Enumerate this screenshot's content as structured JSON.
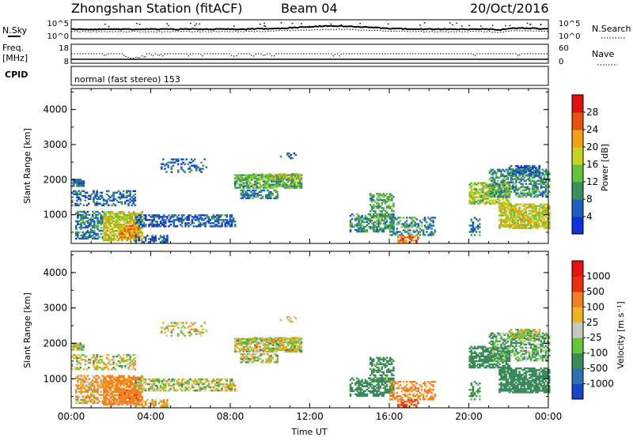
{
  "header": {
    "station": "Zhongshan Station (fitACF)",
    "beam": "Beam 04",
    "date": "20/Oct/2016"
  },
  "strip_sky": {
    "left_label": "N.Sky",
    "right_label": "N.Search",
    "left_ticks": [
      "10^5",
      "10^0"
    ],
    "right_ticks": [
      "10^5",
      "10^0"
    ]
  },
  "strip_freq": {
    "left_label_1": "Freq.",
    "left_label_2": "[MHz]",
    "right_label": "Nave",
    "left_ticks": [
      "18",
      "8"
    ],
    "right_ticks": [
      "60",
      "0"
    ]
  },
  "cpid": {
    "label": "CPID",
    "mode": "normal (fast stereo) 153"
  },
  "chart_data": [
    {
      "type": "heatmap",
      "panel": "power",
      "ylabel": "Slant Range [km]",
      "xlabel": "",
      "ylim": [
        180,
        4600
      ],
      "yticks": [
        "1000",
        "2000",
        "3000",
        "4000"
      ],
      "xticks": [
        "00:00",
        "04:00",
        "08:00",
        "12:00",
        "16:00",
        "20:00",
        "00:00"
      ],
      "colorbar": {
        "label": "Power [dB]",
        "ticks": [
          "4",
          "8",
          "12",
          "16",
          "20",
          "24",
          "28"
        ],
        "colors": [
          "#1030e0",
          "#1c5fc0",
          "#3b8f5c",
          "#62c238",
          "#c8d020",
          "#f0a010",
          "#e85010",
          "#e01010"
        ]
      },
      "regions_description": "scatter echoes 00-03 UT at 300-1900 km, 08-11 UT at 1800-2100 km, 15-18 UT at 500-1600 km, 20-24 UT at 500-2400 km"
    },
    {
      "type": "heatmap",
      "panel": "velocity",
      "ylabel": "Slant Range [km]",
      "xlabel": "Time UT",
      "ylim": [
        180,
        4600
      ],
      "yticks": [
        "1000",
        "2000",
        "3000",
        "4000"
      ],
      "xticks": [
        "00:00",
        "04:00",
        "08:00",
        "12:00",
        "16:00",
        "20:00",
        "00:00"
      ],
      "colorbar": {
        "label": "Velocity [m s⁻¹]",
        "ticks": [
          "1000",
          "500",
          "100",
          "25",
          "-25",
          "-100",
          "-500",
          "-1000"
        ],
        "colors": [
          "#1a44c8",
          "#2a72b0",
          "#3a8a5a",
          "#66c63a",
          "#c8c8c0",
          "#f0b020",
          "#f08020",
          "#e83010",
          "#e81010"
        ]
      }
    }
  ]
}
